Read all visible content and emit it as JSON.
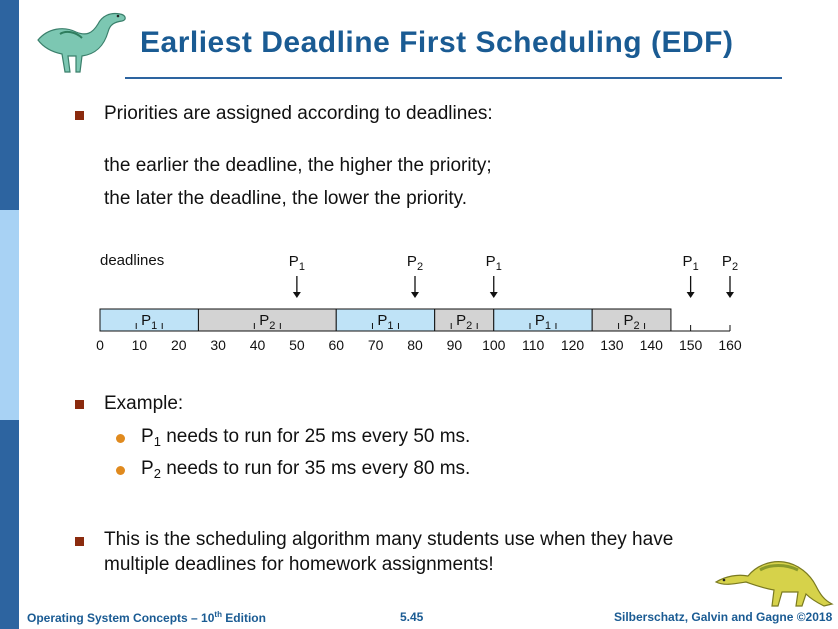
{
  "slide": {
    "title": "Earliest Deadline First Scheduling (EDF)",
    "bullet1": "Priorities are assigned according to deadlines:",
    "line1": "the earlier the deadline, the higher the priority;",
    "line2": "the later the deadline, the lower the priority.",
    "example": "Example:",
    "sub1": {
      "p": "P",
      "sub": "1",
      "text": " needs to run for 25 ms every 50 ms."
    },
    "sub2": {
      "p": "P",
      "sub": "2",
      "text": " needs to run for 35 ms every 80 ms."
    },
    "bullet3_line1": "This is the scheduling algorithm many students use when they have",
    "bullet3_line2": "multiple deadlines for homework assignments!"
  },
  "timeline": {
    "deadlines_label": "deadlines",
    "deadline_markers": [
      {
        "p": "P",
        "sub": "1",
        "time": 50
      },
      {
        "p": "P",
        "sub": "2",
        "time": 80
      },
      {
        "p": "P",
        "sub": "1",
        "time": 100
      },
      {
        "p": "P",
        "sub": "1",
        "time": 150
      },
      {
        "p": "P",
        "sub": "2",
        "time": 160
      }
    ],
    "segments": [
      {
        "p": "P",
        "sub": "1",
        "start": 0,
        "end": 25,
        "color": "#bfe3f7"
      },
      {
        "p": "P",
        "sub": "2",
        "start": 25,
        "end": 60,
        "color": "#d3d3d3"
      },
      {
        "p": "P",
        "sub": "1",
        "start": 60,
        "end": 85,
        "color": "#bfe3f7"
      },
      {
        "p": "P",
        "sub": "2",
        "start": 85,
        "end": 100,
        "color": "#d3d3d3"
      },
      {
        "p": "P",
        "sub": "1",
        "start": 100,
        "end": 125,
        "color": "#bfe3f7"
      },
      {
        "p": "P",
        "sub": "2",
        "start": 125,
        "end": 145,
        "color": "#d3d3d3"
      }
    ],
    "ticks": [
      0,
      10,
      20,
      30,
      40,
      50,
      60,
      70,
      80,
      90,
      100,
      110,
      120,
      130,
      140,
      150,
      160
    ],
    "axis_range": [
      0,
      160
    ]
  },
  "footer": {
    "left_prefix": "Operating System Concepts – 10",
    "left_sup": "th",
    "left_suffix": " Edition",
    "center": "5.45",
    "right": "Silberschatz, Galvin and Gagne ©2018"
  },
  "colors": {
    "title": "#1a5b93",
    "side_bar": "#2d64a0",
    "side_bar_light": "#a8d2f4",
    "bullet_square": "#8b2b0e",
    "bullet_dot": "#e08a1e"
  },
  "icons": [
    "dinosaur-logo-top",
    "dinosaur-logo-bottom"
  ]
}
